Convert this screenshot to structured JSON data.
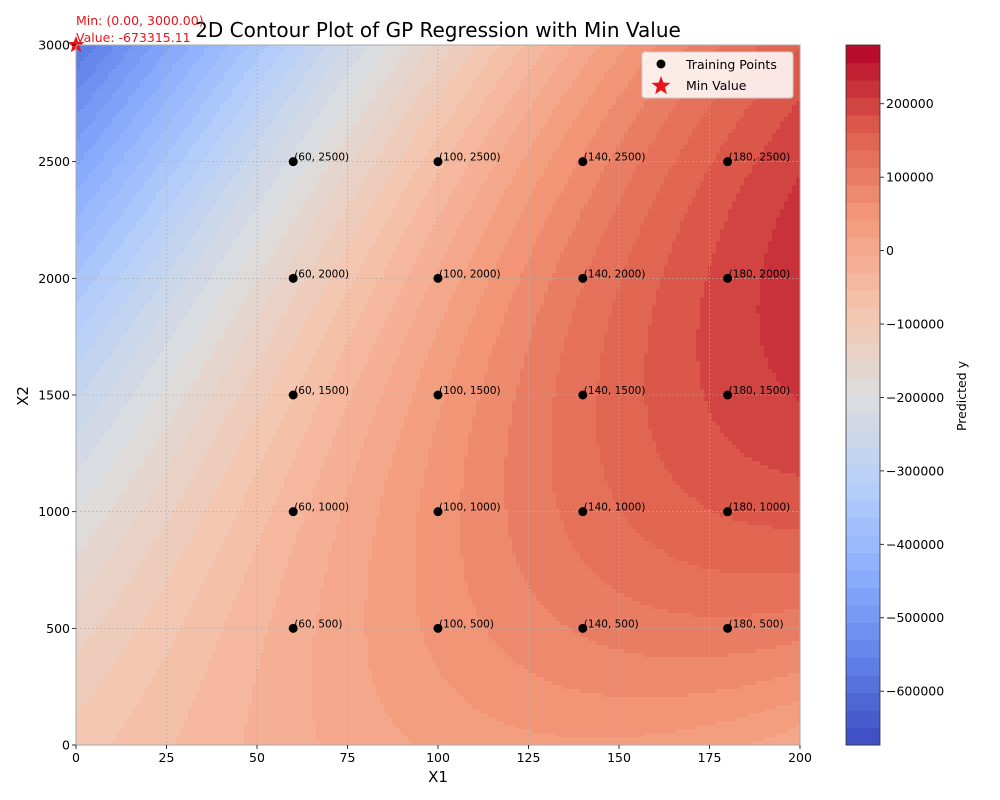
{
  "chart_data": {
    "type": "contour",
    "title": "2D Contour Plot of GP Regression with Min Value",
    "xlabel": "X1",
    "ylabel": "X2",
    "xlim": [
      0,
      200
    ],
    "ylim": [
      0,
      3000
    ],
    "x_ticks": [
      0,
      25,
      50,
      75,
      100,
      125,
      150,
      175,
      200
    ],
    "y_ticks": [
      0,
      500,
      1000,
      1500,
      2000,
      2500,
      3000
    ],
    "grid": true,
    "colormap": "coolwarm",
    "colorbar": {
      "label": "Predicted y",
      "min": -673315.11,
      "max": 280000,
      "ticks": [
        200000,
        100000,
        0,
        -100000,
        -200000,
        -300000,
        -400000,
        -500000,
        -600000
      ],
      "tick_labels": [
        "200000",
        "100000",
        "0",
        "−100000",
        "−200000",
        "−300000",
        "−400000",
        "−500000",
        "−600000"
      ]
    },
    "training_points": [
      {
        "x": 60,
        "y": 500,
        "label": "(60, 500)"
      },
      {
        "x": 60,
        "y": 1000,
        "label": "(60, 1000)"
      },
      {
        "x": 60,
        "y": 1500,
        "label": "(60, 1500)"
      },
      {
        "x": 60,
        "y": 2000,
        "label": "(60, 2000)"
      },
      {
        "x": 60,
        "y": 2500,
        "label": "(60, 2500)"
      },
      {
        "x": 100,
        "y": 500,
        "label": "(100, 500)"
      },
      {
        "x": 100,
        "y": 1000,
        "label": "(100, 1000)"
      },
      {
        "x": 100,
        "y": 1500,
        "label": "(100, 1500)"
      },
      {
        "x": 100,
        "y": 2000,
        "label": "(100, 2000)"
      },
      {
        "x": 100,
        "y": 2500,
        "label": "(100, 2500)"
      },
      {
        "x": 140,
        "y": 500,
        "label": "(140, 500)"
      },
      {
        "x": 140,
        "y": 1000,
        "label": "(140, 1000)"
      },
      {
        "x": 140,
        "y": 1500,
        "label": "(140, 1500)"
      },
      {
        "x": 140,
        "y": 2000,
        "label": "(140, 2000)"
      },
      {
        "x": 140,
        "y": 2500,
        "label": "(140, 2500)"
      },
      {
        "x": 180,
        "y": 500,
        "label": "(180, 500)"
      },
      {
        "x": 180,
        "y": 1000,
        "label": "(180, 1000)"
      },
      {
        "x": 180,
        "y": 1500,
        "label": "(180, 1500)"
      },
      {
        "x": 180,
        "y": 2000,
        "label": "(180, 2000)"
      },
      {
        "x": 180,
        "y": 2500,
        "label": "(180, 2500)"
      }
    ],
    "min_point": {
      "x": 0,
      "y": 3000,
      "value": -673315.11,
      "label_line1": "Min: (0.00, 3000.00)",
      "label_line2": "Value: -673315.11"
    },
    "legend": {
      "placement": "top-right",
      "entries": [
        {
          "label": "Training Points",
          "marker": "dot",
          "color": "#000000"
        },
        {
          "label": "Min Value",
          "marker": "star",
          "color": "#e8141c"
        }
      ]
    },
    "colors": {
      "min_marker": "#e8141c",
      "annotation_text": "#e8141c",
      "training_marker": "#000000"
    }
  }
}
